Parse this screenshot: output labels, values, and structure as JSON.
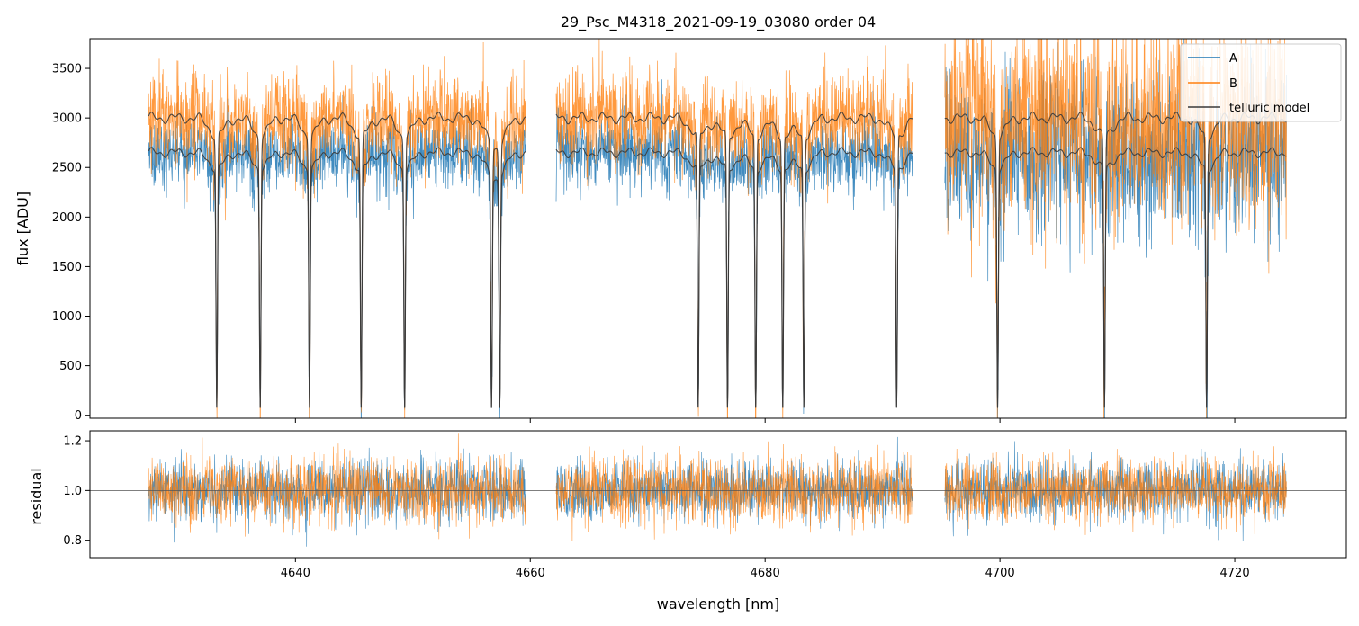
{
  "chart_data": {
    "type": "line",
    "title": "29_Psc_M4318_2021-09-19_03080  order 04",
    "xlabel": "wavelength [nm]",
    "colors": {
      "A": "#1f77b4",
      "B": "#ff7f0e",
      "model": "#3a3a3a"
    },
    "x_range": [
      4622.5,
      4729.5
    ],
    "x_ticks": [
      4640,
      4660,
      4680,
      4700,
      4720
    ],
    "x_tick_labels": [
      "4640",
      "4660",
      "4680",
      "4700",
      "4720"
    ],
    "legend": {
      "placement": "top-right",
      "entries": [
        "A",
        "B",
        "telluric model"
      ]
    },
    "segments": [
      [
        4627.5,
        4659.6
      ],
      [
        4662.2,
        4692.6
      ],
      [
        4695.3,
        4724.4
      ]
    ],
    "panels": [
      {
        "id": "flux",
        "ylabel": "flux [ADU]",
        "y_range": [
          -30,
          3800
        ],
        "y_ticks": [
          0,
          500,
          1000,
          1500,
          2000,
          2500,
          3000,
          3500
        ],
        "y_tick_labels": [
          "0",
          "500",
          "1000",
          "1500",
          "2000",
          "2500",
          "3000",
          "3500"
        ],
        "series": [
          {
            "name": "A",
            "continuum_level": 2650,
            "noise": 180
          },
          {
            "name": "B",
            "continuum_level": 3000,
            "noise": 240
          },
          {
            "name": "telluric model"
          }
        ],
        "absorption_lines_nm": [
          4633.3,
          4637.0,
          4641.2,
          4645.6,
          4649.3,
          4656.7,
          4657.4,
          4674.3,
          4676.8,
          4679.2,
          4681.5,
          4683.3,
          4691.2,
          4699.8,
          4708.9,
          4717.6
        ]
      },
      {
        "id": "residual",
        "ylabel": "residual",
        "y_range": [
          0.73,
          1.24
        ],
        "y_ticks": [
          0.8,
          1.0,
          1.2
        ],
        "y_tick_labels": [
          "0.8",
          "1.0",
          "1.2"
        ],
        "reference_line": 1.0,
        "series": [
          {
            "name": "A",
            "center": 1.0,
            "noise": 0.06
          },
          {
            "name": "B",
            "center": 1.0,
            "noise": 0.065
          }
        ]
      }
    ]
  }
}
